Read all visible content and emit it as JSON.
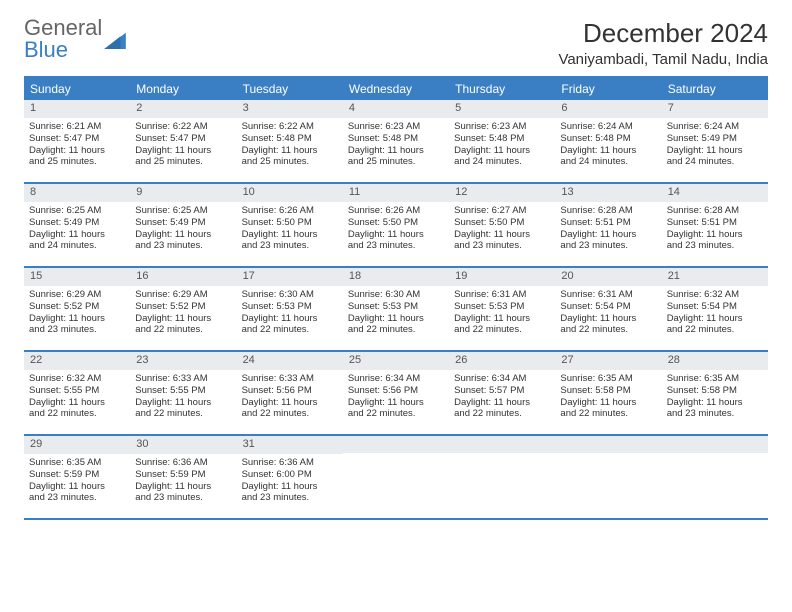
{
  "brand": {
    "word1": "General",
    "word2": "Blue"
  },
  "title": "December 2024",
  "location": "Vaniyambadi, Tamil Nadu, India",
  "colors": {
    "header_bg": "#3a7fc4",
    "header_text": "#ffffff",
    "daynum_bg": "#e9ecef",
    "rule": "#3a7fc4",
    "text": "#333333",
    "logo_gray": "#666666"
  },
  "layout": {
    "columns": 7,
    "rows": 5,
    "cell_font_size_pt": 9.5,
    "dayhead_font_size_pt": 12,
    "title_font_size_pt": 26
  },
  "day_names": [
    "Sunday",
    "Monday",
    "Tuesday",
    "Wednesday",
    "Thursday",
    "Friday",
    "Saturday"
  ],
  "weeks": [
    [
      {
        "n": "1",
        "sr": "Sunrise: 6:21 AM",
        "ss": "Sunset: 5:47 PM",
        "d1": "Daylight: 11 hours",
        "d2": "and 25 minutes."
      },
      {
        "n": "2",
        "sr": "Sunrise: 6:22 AM",
        "ss": "Sunset: 5:47 PM",
        "d1": "Daylight: 11 hours",
        "d2": "and 25 minutes."
      },
      {
        "n": "3",
        "sr": "Sunrise: 6:22 AM",
        "ss": "Sunset: 5:48 PM",
        "d1": "Daylight: 11 hours",
        "d2": "and 25 minutes."
      },
      {
        "n": "4",
        "sr": "Sunrise: 6:23 AM",
        "ss": "Sunset: 5:48 PM",
        "d1": "Daylight: 11 hours",
        "d2": "and 25 minutes."
      },
      {
        "n": "5",
        "sr": "Sunrise: 6:23 AM",
        "ss": "Sunset: 5:48 PM",
        "d1": "Daylight: 11 hours",
        "d2": "and 24 minutes."
      },
      {
        "n": "6",
        "sr": "Sunrise: 6:24 AM",
        "ss": "Sunset: 5:48 PM",
        "d1": "Daylight: 11 hours",
        "d2": "and 24 minutes."
      },
      {
        "n": "7",
        "sr": "Sunrise: 6:24 AM",
        "ss": "Sunset: 5:49 PM",
        "d1": "Daylight: 11 hours",
        "d2": "and 24 minutes."
      }
    ],
    [
      {
        "n": "8",
        "sr": "Sunrise: 6:25 AM",
        "ss": "Sunset: 5:49 PM",
        "d1": "Daylight: 11 hours",
        "d2": "and 24 minutes."
      },
      {
        "n": "9",
        "sr": "Sunrise: 6:25 AM",
        "ss": "Sunset: 5:49 PM",
        "d1": "Daylight: 11 hours",
        "d2": "and 23 minutes."
      },
      {
        "n": "10",
        "sr": "Sunrise: 6:26 AM",
        "ss": "Sunset: 5:50 PM",
        "d1": "Daylight: 11 hours",
        "d2": "and 23 minutes."
      },
      {
        "n": "11",
        "sr": "Sunrise: 6:26 AM",
        "ss": "Sunset: 5:50 PM",
        "d1": "Daylight: 11 hours",
        "d2": "and 23 minutes."
      },
      {
        "n": "12",
        "sr": "Sunrise: 6:27 AM",
        "ss": "Sunset: 5:50 PM",
        "d1": "Daylight: 11 hours",
        "d2": "and 23 minutes."
      },
      {
        "n": "13",
        "sr": "Sunrise: 6:28 AM",
        "ss": "Sunset: 5:51 PM",
        "d1": "Daylight: 11 hours",
        "d2": "and 23 minutes."
      },
      {
        "n": "14",
        "sr": "Sunrise: 6:28 AM",
        "ss": "Sunset: 5:51 PM",
        "d1": "Daylight: 11 hours",
        "d2": "and 23 minutes."
      }
    ],
    [
      {
        "n": "15",
        "sr": "Sunrise: 6:29 AM",
        "ss": "Sunset: 5:52 PM",
        "d1": "Daylight: 11 hours",
        "d2": "and 23 minutes."
      },
      {
        "n": "16",
        "sr": "Sunrise: 6:29 AM",
        "ss": "Sunset: 5:52 PM",
        "d1": "Daylight: 11 hours",
        "d2": "and 22 minutes."
      },
      {
        "n": "17",
        "sr": "Sunrise: 6:30 AM",
        "ss": "Sunset: 5:53 PM",
        "d1": "Daylight: 11 hours",
        "d2": "and 22 minutes."
      },
      {
        "n": "18",
        "sr": "Sunrise: 6:30 AM",
        "ss": "Sunset: 5:53 PM",
        "d1": "Daylight: 11 hours",
        "d2": "and 22 minutes."
      },
      {
        "n": "19",
        "sr": "Sunrise: 6:31 AM",
        "ss": "Sunset: 5:53 PM",
        "d1": "Daylight: 11 hours",
        "d2": "and 22 minutes."
      },
      {
        "n": "20",
        "sr": "Sunrise: 6:31 AM",
        "ss": "Sunset: 5:54 PM",
        "d1": "Daylight: 11 hours",
        "d2": "and 22 minutes."
      },
      {
        "n": "21",
        "sr": "Sunrise: 6:32 AM",
        "ss": "Sunset: 5:54 PM",
        "d1": "Daylight: 11 hours",
        "d2": "and 22 minutes."
      }
    ],
    [
      {
        "n": "22",
        "sr": "Sunrise: 6:32 AM",
        "ss": "Sunset: 5:55 PM",
        "d1": "Daylight: 11 hours",
        "d2": "and 22 minutes."
      },
      {
        "n": "23",
        "sr": "Sunrise: 6:33 AM",
        "ss": "Sunset: 5:55 PM",
        "d1": "Daylight: 11 hours",
        "d2": "and 22 minutes."
      },
      {
        "n": "24",
        "sr": "Sunrise: 6:33 AM",
        "ss": "Sunset: 5:56 PM",
        "d1": "Daylight: 11 hours",
        "d2": "and 22 minutes."
      },
      {
        "n": "25",
        "sr": "Sunrise: 6:34 AM",
        "ss": "Sunset: 5:56 PM",
        "d1": "Daylight: 11 hours",
        "d2": "and 22 minutes."
      },
      {
        "n": "26",
        "sr": "Sunrise: 6:34 AM",
        "ss": "Sunset: 5:57 PM",
        "d1": "Daylight: 11 hours",
        "d2": "and 22 minutes."
      },
      {
        "n": "27",
        "sr": "Sunrise: 6:35 AM",
        "ss": "Sunset: 5:58 PM",
        "d1": "Daylight: 11 hours",
        "d2": "and 22 minutes."
      },
      {
        "n": "28",
        "sr": "Sunrise: 6:35 AM",
        "ss": "Sunset: 5:58 PM",
        "d1": "Daylight: 11 hours",
        "d2": "and 23 minutes."
      }
    ],
    [
      {
        "n": "29",
        "sr": "Sunrise: 6:35 AM",
        "ss": "Sunset: 5:59 PM",
        "d1": "Daylight: 11 hours",
        "d2": "and 23 minutes."
      },
      {
        "n": "30",
        "sr": "Sunrise: 6:36 AM",
        "ss": "Sunset: 5:59 PM",
        "d1": "Daylight: 11 hours",
        "d2": "and 23 minutes."
      },
      {
        "n": "31",
        "sr": "Sunrise: 6:36 AM",
        "ss": "Sunset: 6:00 PM",
        "d1": "Daylight: 11 hours",
        "d2": "and 23 minutes."
      },
      {
        "n": "",
        "sr": "",
        "ss": "",
        "d1": "",
        "d2": ""
      },
      {
        "n": "",
        "sr": "",
        "ss": "",
        "d1": "",
        "d2": ""
      },
      {
        "n": "",
        "sr": "",
        "ss": "",
        "d1": "",
        "d2": ""
      },
      {
        "n": "",
        "sr": "",
        "ss": "",
        "d1": "",
        "d2": ""
      }
    ]
  ]
}
